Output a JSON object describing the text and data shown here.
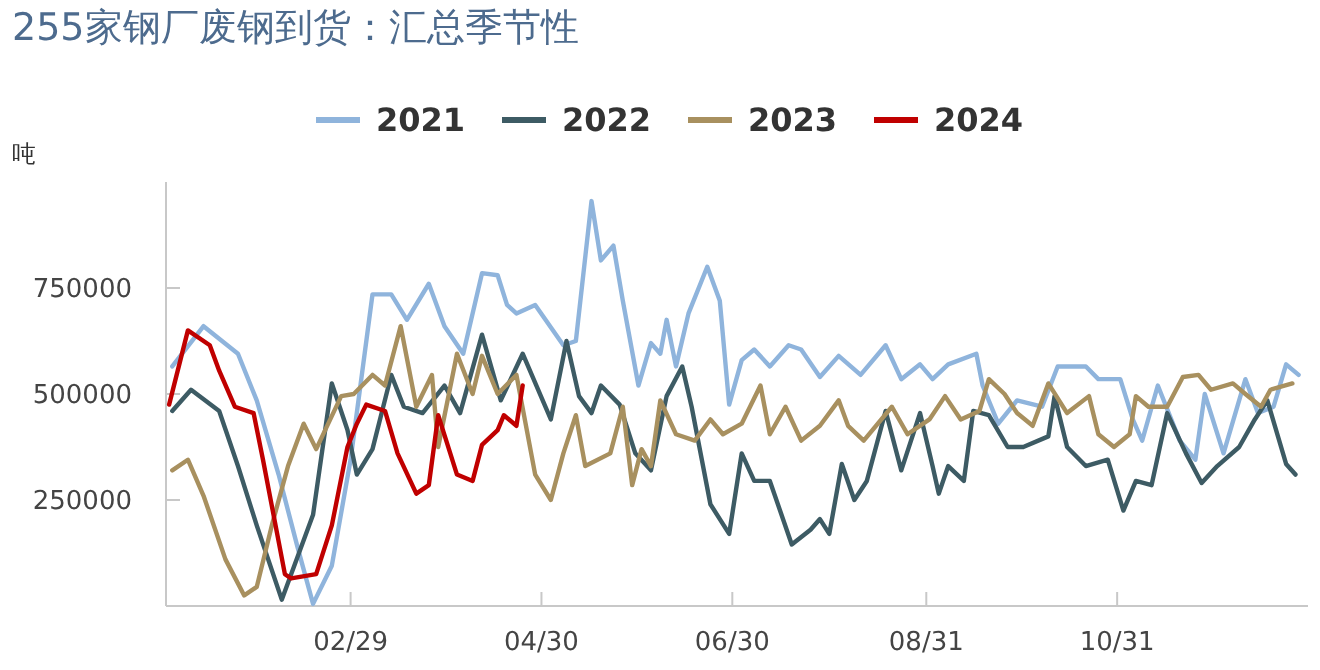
{
  "chart_data": {
    "type": "line",
    "title": "255家钢厂废钢到货：汇总季节性",
    "ylabel": "吨",
    "xlim": [
      "--01-01",
      "--12-31"
    ],
    "xticks": [
      {
        "value": "--02-29",
        "label": "02/29"
      },
      {
        "value": "--04-30",
        "label": "04/30"
      },
      {
        "value": "--06-30",
        "label": "06/30"
      },
      {
        "value": "--08-31",
        "label": "08/31"
      },
      {
        "value": "--10-31",
        "label": "10/31"
      }
    ],
    "ylim": [
      0,
      1000000
    ],
    "yticks": [
      250000,
      500000,
      750000
    ],
    "grid": false,
    "legend": "top",
    "marker": "none",
    "line_style": "solid",
    "series": [
      {
        "name": "2021",
        "color": "#8fb4dc",
        "x": [
          "--01-03",
          "--01-13",
          "--01-24",
          "--01-30",
          "--02-06",
          "--02-12",
          "--02-17",
          "--02-23",
          "--02-29",
          "--03-07",
          "--03-13",
          "--03-18",
          "--03-25",
          "--03-30",
          "--04-05",
          "--04-11",
          "--04-16",
          "--04-19",
          "--04-22",
          "--04-28",
          "--05-07",
          "--05-11",
          "--05-16",
          "--05-19",
          "--05-23",
          "--05-26",
          "--05-31",
          "--06-04",
          "--06-07",
          "--06-09",
          "--06-12",
          "--06-16",
          "--06-22",
          "--06-26",
          "--06-29",
          "--07-03",
          "--07-07",
          "--07-12",
          "--07-18",
          "--07-22",
          "--07-28",
          "--08-03",
          "--08-10",
          "--08-18",
          "--08-23",
          "--08-29",
          "--09-02",
          "--09-07",
          "--09-16",
          "--09-18",
          "--09-23",
          "--09-29",
          "--10-07",
          "--10-12",
          "--10-21",
          "--10-25",
          "--11-01",
          "--11-05",
          "--11-08",
          "--11-13",
          "--11-20",
          "--11-25",
          "--11-28",
          "--12-04",
          "--12-11",
          "--12-15",
          "--12-20",
          "--12-24",
          "--12-28"
        ],
        "values": [
          565000,
          660000,
          595000,
          485000,
          310000,
          140000,
          5000,
          95000,
          345000,
          735000,
          735000,
          675000,
          760000,
          660000,
          595000,
          785000,
          780000,
          710000,
          690000,
          710000,
          615000,
          625000,
          955000,
          815000,
          850000,
          720000,
          520000,
          620000,
          595000,
          675000,
          565000,
          690000,
          800000,
          720000,
          475000,
          580000,
          605000,
          565000,
          615000,
          605000,
          540000,
          590000,
          545000,
          615000,
          535000,
          570000,
          535000,
          570000,
          595000,
          520000,
          430000,
          485000,
          470000,
          565000,
          565000,
          535000,
          535000,
          440000,
          390000,
          520000,
          390000,
          345000,
          500000,
          360000,
          535000,
          455000,
          470000,
          570000,
          545000
        ]
      },
      {
        "name": "2022",
        "color": "#3d5b64",
        "x": [
          "--01-03",
          "--01-09",
          "--01-18",
          "--01-24",
          "--01-30",
          "--02-07",
          "--02-17",
          "--02-23",
          "--02-28",
          "--03-02",
          "--03-07",
          "--03-13",
          "--03-17",
          "--03-23",
          "--03-30",
          "--04-04",
          "--04-11",
          "--04-17",
          "--04-24",
          "--05-03",
          "--05-08",
          "--05-12",
          "--05-16",
          "--05-19",
          "--05-25",
          "--05-30",
          "--06-04",
          "--06-09",
          "--06-14",
          "--06-17",
          "--06-23",
          "--06-29",
          "--07-03",
          "--07-07",
          "--07-12",
          "--07-19",
          "--07-25",
          "--07-28",
          "--07-31",
          "--08-04",
          "--08-08",
          "--08-12",
          "--08-18",
          "--08-23",
          "--08-29",
          "--09-02",
          "--09-04",
          "--09-07",
          "--09-12",
          "--09-15",
          "--09-20",
          "--09-26",
          "--10-01",
          "--10-09",
          "--10-11",
          "--10-15",
          "--10-21",
          "--10-28",
          "--11-02",
          "--11-06",
          "--11-11",
          "--11-16",
          "--11-22",
          "--11-27",
          "--12-02",
          "--12-09",
          "--12-14",
          "--12-18",
          "--12-24",
          "--12-27"
        ],
        "values": [
          460000,
          510000,
          460000,
          330000,
          190000,
          15000,
          215000,
          525000,
          415000,
          310000,
          370000,
          545000,
          470000,
          455000,
          520000,
          455000,
          640000,
          485000,
          595000,
          440000,
          625000,
          495000,
          455000,
          520000,
          475000,
          360000,
          320000,
          495000,
          565000,
          470000,
          240000,
          170000,
          360000,
          295000,
          295000,
          145000,
          180000,
          205000,
          170000,
          335000,
          250000,
          295000,
          460000,
          320000,
          455000,
          330000,
          265000,
          330000,
          295000,
          460000,
          450000,
          375000,
          375000,
          400000,
          495000,
          375000,
          330000,
          345000,
          225000,
          295000,
          285000,
          455000,
          360000,
          290000,
          330000,
          375000,
          440000,
          485000,
          335000,
          310000
        ]
      },
      {
        "name": "2023",
        "color": "#a8905f",
        "x": [
          "--01-03",
          "--01-08",
          "--01-13",
          "--01-20",
          "--01-26",
          "--01-30",
          "--02-04",
          "--02-09",
          "--02-14",
          "--02-18",
          "--02-26",
          "--03-01",
          "--03-07",
          "--03-11",
          "--03-16",
          "--03-21",
          "--03-26",
          "--03-28",
          "--04-03",
          "--04-08",
          "--04-11",
          "--04-16",
          "--04-22",
          "--04-28",
          "--05-03",
          "--05-07",
          "--05-11",
          "--05-14",
          "--05-22",
          "--05-26",
          "--05-29",
          "--06-01",
          "--06-04",
          "--06-07",
          "--06-12",
          "--06-18",
          "--06-23",
          "--06-27",
          "--07-03",
          "--07-09",
          "--07-12",
          "--07-17",
          "--07-22",
          "--07-28",
          "--08-03",
          "--08-06",
          "--08-11",
          "--08-20",
          "--08-25",
          "--09-01",
          "--09-06",
          "--09-11",
          "--09-17",
          "--09-20",
          "--09-25",
          "--09-29",
          "--10-04",
          "--10-09",
          "--10-15",
          "--10-22",
          "--10-25",
          "--10-30",
          "--11-04",
          "--11-06",
          "--11-10",
          "--11-16",
          "--11-21",
          "--11-26",
          "--11-30",
          "--12-07",
          "--12-11",
          "--12-16",
          "--12-19",
          "--12-26"
        ],
        "values": [
          320000,
          345000,
          260000,
          110000,
          25000,
          45000,
          195000,
          330000,
          430000,
          370000,
          495000,
          500000,
          545000,
          520000,
          660000,
          470000,
          545000,
          375000,
          595000,
          500000,
          590000,
          500000,
          545000,
          310000,
          250000,
          360000,
          450000,
          330000,
          360000,
          470000,
          285000,
          370000,
          330000,
          485000,
          405000,
          390000,
          440000,
          405000,
          430000,
          520000,
          405000,
          470000,
          390000,
          425000,
          485000,
          425000,
          390000,
          470000,
          405000,
          440000,
          495000,
          440000,
          460000,
          535000,
          500000,
          455000,
          425000,
          525000,
          455000,
          495000,
          405000,
          375000,
          405000,
          495000,
          470000,
          470000,
          540000,
          545000,
          510000,
          525000,
          500000,
          470000,
          510000,
          525000
        ]
      },
      {
        "name": "2024",
        "color": "#c00000",
        "x": [
          "--01-02",
          "--01-08",
          "--01-15",
          "--01-18",
          "--01-23",
          "--01-29",
          "--02-01",
          "--02-08",
          "--02-10",
          "--02-18",
          "--02-23",
          "--02-28",
          "--03-02",
          "--03-05",
          "--03-11",
          "--03-15",
          "--03-21",
          "--03-25",
          "--03-28",
          "--04-03",
          "--04-08",
          "--04-11",
          "--04-16",
          "--04-18",
          "--04-22",
          "--04-24"
        ],
        "values": [
          475000,
          650000,
          615000,
          555000,
          470000,
          455000,
          345000,
          75000,
          65000,
          75000,
          190000,
          375000,
          430000,
          475000,
          460000,
          360000,
          265000,
          285000,
          450000,
          310000,
          295000,
          380000,
          415000,
          450000,
          425000,
          520000
        ]
      }
    ]
  }
}
